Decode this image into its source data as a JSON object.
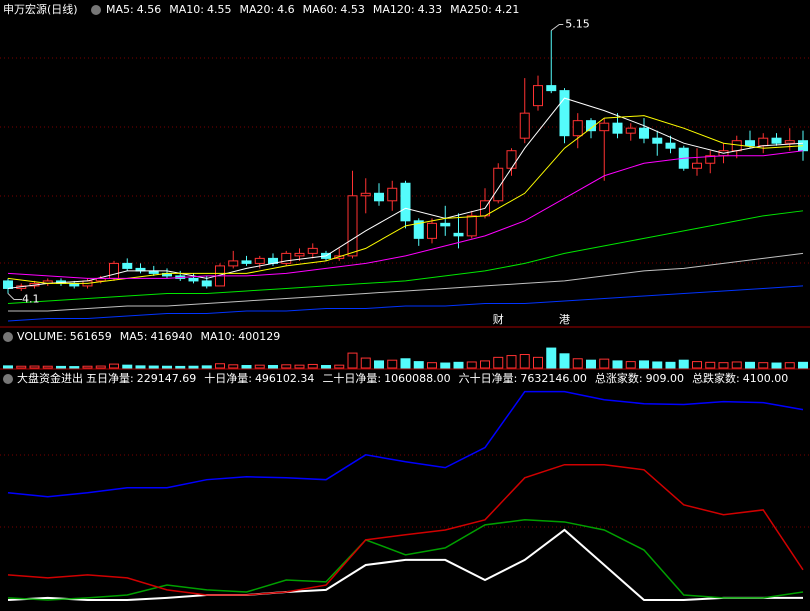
{
  "chart_data": [
    {
      "type": "candlestick",
      "title": "申万宏源(日线)",
      "up_color": "#ff3232",
      "down_color": "#54fcfc",
      "ylim": [
        3.97,
        5.2
      ],
      "open": [
        4.15,
        4.12,
        4.13,
        4.14,
        4.15,
        4.14,
        4.13,
        4.15,
        4.16,
        4.22,
        4.2,
        4.19,
        4.18,
        4.17,
        4.16,
        4.15,
        4.13,
        4.21,
        4.23,
        4.22,
        4.24,
        4.22,
        4.25,
        4.26,
        4.26,
        4.24,
        4.25,
        4.49,
        4.5,
        4.47,
        4.54,
        4.39,
        4.32,
        4.38,
        4.34,
        4.33,
        4.41,
        4.47,
        4.6,
        4.72,
        4.85,
        4.93,
        4.91,
        4.73,
        4.79,
        4.75,
        4.78,
        4.74,
        4.76,
        4.72,
        4.7,
        4.68,
        4.6,
        4.62,
        4.65,
        4.67,
        4.71,
        4.69,
        4.72,
        4.7,
        4.71
      ],
      "high": [
        4.16,
        4.14,
        4.15,
        4.16,
        4.16,
        4.15,
        4.16,
        4.17,
        4.23,
        4.24,
        4.22,
        4.21,
        4.2,
        4.19,
        4.18,
        4.17,
        4.22,
        4.27,
        4.25,
        4.25,
        4.26,
        4.27,
        4.28,
        4.3,
        4.27,
        4.28,
        4.59,
        4.56,
        4.54,
        4.55,
        4.55,
        4.4,
        4.4,
        4.45,
        4.42,
        4.43,
        4.52,
        4.62,
        4.68,
        4.96,
        4.97,
        5.15,
        4.92,
        4.82,
        4.8,
        4.8,
        4.82,
        4.78,
        4.8,
        4.75,
        4.73,
        4.69,
        4.68,
        4.67,
        4.7,
        4.73,
        4.75,
        4.74,
        4.74,
        4.76,
        4.75
      ],
      "low": [
        4.1,
        4.11,
        4.12,
        4.13,
        4.13,
        4.12,
        4.12,
        4.14,
        4.15,
        4.19,
        4.18,
        4.17,
        4.16,
        4.15,
        4.14,
        4.12,
        4.13,
        4.2,
        4.21,
        4.2,
        4.21,
        4.21,
        4.23,
        4.24,
        4.23,
        4.23,
        4.24,
        4.42,
        4.45,
        4.43,
        4.36,
        4.29,
        4.3,
        4.33,
        4.28,
        4.32,
        4.4,
        4.46,
        4.57,
        4.7,
        4.83,
        4.9,
        4.7,
        4.68,
        4.72,
        4.55,
        4.72,
        4.71,
        4.7,
        4.65,
        4.66,
        4.59,
        4.57,
        4.58,
        4.62,
        4.64,
        4.68,
        4.66,
        4.69,
        4.67,
        4.63
      ],
      "close": [
        4.12,
        4.13,
        4.14,
        4.15,
        4.14,
        4.13,
        4.15,
        4.16,
        4.22,
        4.2,
        4.19,
        4.18,
        4.17,
        4.16,
        4.15,
        4.13,
        4.21,
        4.23,
        4.22,
        4.24,
        4.22,
        4.26,
        4.26,
        4.28,
        4.24,
        4.25,
        4.49,
        4.5,
        4.47,
        4.52,
        4.39,
        4.32,
        4.38,
        4.37,
        4.33,
        4.41,
        4.47,
        4.6,
        4.67,
        4.82,
        4.93,
        4.91,
        4.73,
        4.79,
        4.75,
        4.78,
        4.74,
        4.76,
        4.72,
        4.7,
        4.68,
        4.6,
        4.62,
        4.65,
        4.67,
        4.71,
        4.69,
        4.72,
        4.7,
        4.71,
        4.67
      ],
      "series": [
        {
          "name": "MA5:",
          "legend_value": 4.56,
          "color": "#ffffff",
          "x": [
            0,
            3,
            6,
            9,
            12,
            15,
            18,
            21,
            24,
            27,
            30,
            33,
            36,
            39,
            42,
            45,
            48,
            51,
            54,
            57,
            60
          ],
          "values": [
            4.12,
            4.14,
            4.15,
            4.19,
            4.19,
            4.16,
            4.2,
            4.23,
            4.25,
            4.35,
            4.44,
            4.4,
            4.44,
            4.68,
            4.88,
            4.83,
            4.77,
            4.7,
            4.66,
            4.69,
            4.7
          ]
        },
        {
          "name": "MA10:",
          "legend_value": 4.55,
          "color": "#ffff00",
          "x": [
            0,
            3,
            6,
            9,
            12,
            15,
            18,
            21,
            24,
            27,
            30,
            33,
            36,
            39,
            42,
            45,
            48,
            51,
            54,
            57,
            60
          ],
          "values": [
            4.16,
            4.14,
            4.14,
            4.16,
            4.18,
            4.18,
            4.18,
            4.21,
            4.23,
            4.28,
            4.37,
            4.4,
            4.41,
            4.5,
            4.68,
            4.8,
            4.81,
            4.76,
            4.7,
            4.68,
            4.69
          ]
        },
        {
          "name": "MA20:",
          "legend_value": 4.6,
          "color": "#ff00ff",
          "x": [
            0,
            3,
            6,
            9,
            12,
            15,
            18,
            21,
            24,
            27,
            30,
            33,
            36,
            39,
            42,
            45,
            48,
            51,
            54,
            57,
            60
          ],
          "values": [
            4.18,
            4.17,
            4.16,
            4.16,
            4.16,
            4.17,
            4.17,
            4.18,
            4.2,
            4.22,
            4.25,
            4.29,
            4.33,
            4.39,
            4.48,
            4.57,
            4.62,
            4.64,
            4.65,
            4.65,
            4.67
          ]
        },
        {
          "name": "MA60:",
          "legend_value": 4.53,
          "color": "#00e600",
          "x": [
            0,
            3,
            6,
            9,
            12,
            15,
            18,
            21,
            24,
            27,
            30,
            33,
            36,
            39,
            42,
            45,
            48,
            51,
            54,
            57,
            60
          ],
          "values": [
            4.06,
            4.07,
            4.08,
            4.09,
            4.1,
            4.1,
            4.11,
            4.12,
            4.13,
            4.14,
            4.15,
            4.17,
            4.19,
            4.22,
            4.26,
            4.29,
            4.32,
            4.35,
            4.38,
            4.41,
            4.43
          ]
        },
        {
          "name": "MA120:",
          "legend_value": 4.33,
          "color": "#c0c0c0",
          "x": [
            0,
            3,
            6,
            9,
            12,
            15,
            18,
            21,
            24,
            27,
            30,
            33,
            36,
            39,
            42,
            45,
            48,
            51,
            54,
            57,
            60
          ],
          "values": [
            4.03,
            4.03,
            4.04,
            4.05,
            4.05,
            4.06,
            4.07,
            4.08,
            4.09,
            4.1,
            4.11,
            4.12,
            4.13,
            4.14,
            4.15,
            4.17,
            4.19,
            4.2,
            4.22,
            4.24,
            4.26
          ]
        },
        {
          "name": "MA250:",
          "legend_value": 4.21,
          "color": "#0033ff",
          "x": [
            0,
            3,
            6,
            9,
            12,
            15,
            18,
            21,
            24,
            27,
            30,
            33,
            36,
            39,
            42,
            45,
            48,
            51,
            54,
            57,
            60
          ],
          "values": [
            3.99,
            4.0,
            4.0,
            4.01,
            4.02,
            4.02,
            4.03,
            4.03,
            4.04,
            4.04,
            4.05,
            4.05,
            4.06,
            4.06,
            4.07,
            4.08,
            4.09,
            4.1,
            4.11,
            4.12,
            4.13
          ]
        }
      ],
      "annotations": [
        {
          "index": 41,
          "value": 5.15
        },
        {
          "index": 0,
          "value": 4.1
        }
      ],
      "markers": [
        {
          "index": 37,
          "text": "财",
          "color": "#3399ff"
        },
        {
          "index": 42,
          "text": "港",
          "color": "#ff3232"
        }
      ]
    },
    {
      "type": "bar",
      "title": "VOLUME:",
      "title_value": 561659,
      "ylim": [
        0,
        620000
      ],
      "values": [
        60000,
        50000,
        55000,
        50000,
        45000,
        40000,
        50000,
        55000,
        110000,
        80000,
        60000,
        55000,
        50000,
        45000,
        50000,
        60000,
        120000,
        90000,
        70000,
        80000,
        70000,
        90000,
        80000,
        100000,
        70000,
        80000,
        420000,
        280000,
        200000,
        220000,
        260000,
        180000,
        150000,
        140000,
        160000,
        170000,
        200000,
        300000,
        350000,
        380000,
        300000,
        561659,
        400000,
        260000,
        220000,
        250000,
        200000,
        180000,
        200000,
        170000,
        160000,
        220000,
        180000,
        160000,
        150000,
        170000,
        160000,
        150000,
        140000,
        150000,
        160000
      ],
      "legend": [
        {
          "name": "MA5:",
          "value": 416940,
          "color": "#ffffff"
        },
        {
          "name": "MA10:",
          "value": 400129,
          "color": "#ffff00"
        }
      ]
    },
    {
      "type": "line",
      "title": "大盘资金进出",
      "ylim": [
        -300000,
        8000000
      ],
      "x": [
        0,
        3,
        6,
        9,
        12,
        15,
        18,
        21,
        24,
        27,
        30,
        33,
        36,
        39,
        42,
        45,
        48,
        51,
        54,
        57,
        60
      ],
      "series": [
        {
          "name": "五日净量:",
          "legend_value": 229147.69,
          "color": "#ffffff",
          "values": [
            -40000,
            40000,
            -40000,
            -40000,
            40000,
            150000,
            150000,
            260000,
            340000,
            1270000,
            1460000,
            1460000,
            710000,
            1460000,
            2580000,
            1270000,
            -40000,
            -40000,
            40000,
            40000,
            40000
          ]
        },
        {
          "name": "十日净量:",
          "legend_value": 496102.34,
          "color": "#00a000",
          "values": [
            40000,
            -40000,
            40000,
            150000,
            520000,
            340000,
            260000,
            710000,
            640000,
            2210000,
            1650000,
            1910000,
            2770000,
            2960000,
            2880000,
            2580000,
            1830000,
            150000,
            40000,
            40000,
            260000
          ]
        },
        {
          "name": "二十日净量:",
          "legend_value": {
            "value": 1060088,
            "label": "1060088.00"
          },
          "color": "#d00000",
          "values": [
            900000,
            790000,
            900000,
            790000,
            340000,
            150000,
            150000,
            260000,
            520000,
            2210000,
            2400000,
            2580000,
            2960000,
            4530000,
            5020000,
            5020000,
            4830000,
            3520000,
            3150000,
            3330000,
            1090000
          ]
        },
        {
          "name": "六十日净量:",
          "legend_value": {
            "value": 7632146,
            "label": "7632146.00"
          },
          "color": "#0000ff",
          "values": [
            3970000,
            3820000,
            3970000,
            4160000,
            4160000,
            4460000,
            4570000,
            4530000,
            4460000,
            5390000,
            5130000,
            4910000,
            5660000,
            7750000,
            7750000,
            7450000,
            7300000,
            7270000,
            7380000,
            7340000,
            7080000
          ]
        }
      ],
      "legend": [
        {
          "name": "总涨家数:",
          "value": {
            "value": 909,
            "label": "909.00"
          },
          "color": "#ffffff"
        },
        {
          "name": "总跌家数:",
          "value": {
            "value": 4100,
            "label": "4100.00"
          },
          "color": "#00c000"
        }
      ]
    }
  ]
}
